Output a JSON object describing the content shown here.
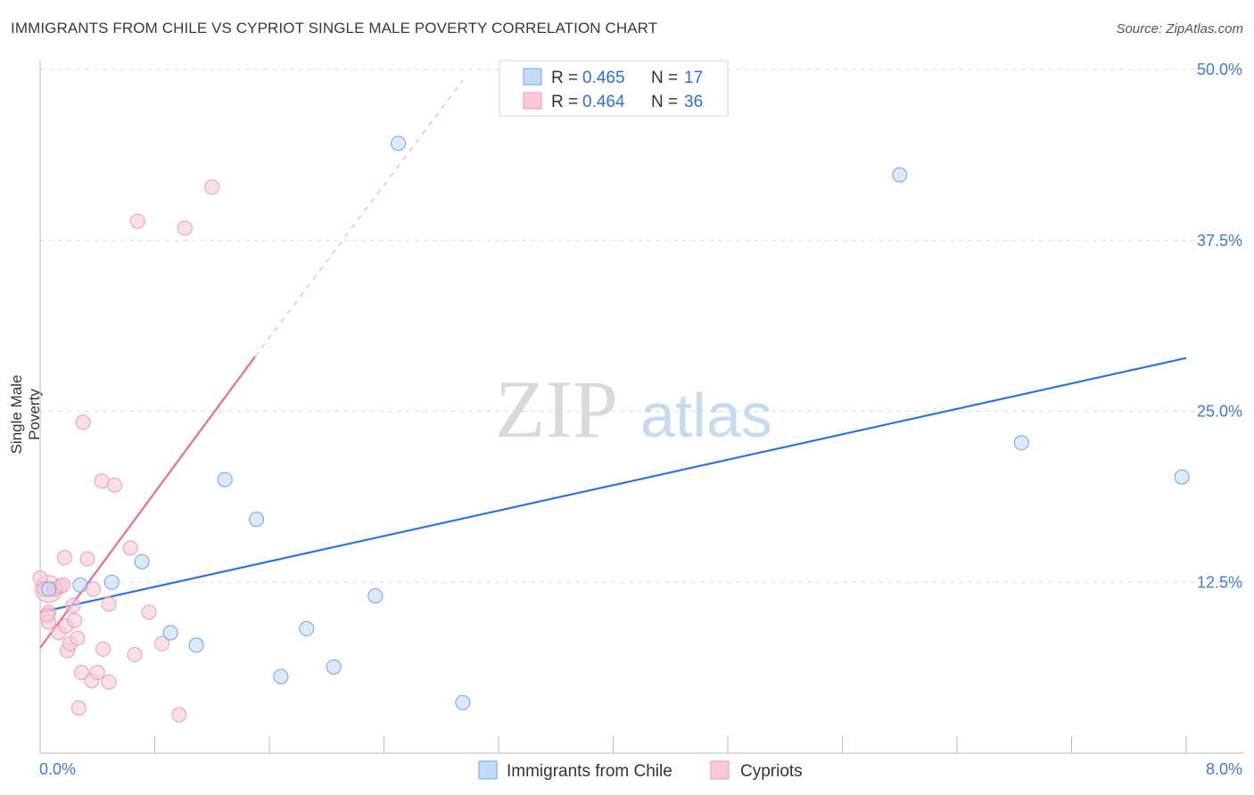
{
  "title": "IMMIGRANTS FROM CHILE VS CYPRIOT SINGLE MALE POVERTY CORRELATION CHART",
  "source": "Source: ZipAtlas.com",
  "watermark": {
    "zip": "ZIP",
    "atlas": "atlas"
  },
  "chart_data": {
    "type": "scatter",
    "xlabel": "",
    "ylabel": "Single Male Poverty",
    "xlim": [
      0,
      8
    ],
    "ylim": [
      0,
      50
    ],
    "x_tick_labels": [
      "0.0%",
      "8.0%"
    ],
    "y_ticks": [
      12.5,
      25.0,
      37.5,
      50.0
    ],
    "y_tick_labels": [
      "12.5%",
      "25.0%",
      "37.5%",
      "50.0%"
    ],
    "grid": true,
    "legend_position": "top-center",
    "series": [
      {
        "name": "Immigrants from Chile",
        "color": "#6fa4e6",
        "fill": "#c5dbf5",
        "line_color": "#2f75d6",
        "R": "0.465",
        "N": "17",
        "points": [
          [
            0.06,
            12.0
          ],
          [
            0.28,
            12.3
          ],
          [
            0.5,
            12.5
          ],
          [
            0.71,
            14.0
          ],
          [
            0.91,
            8.8
          ],
          [
            1.09,
            7.9
          ],
          [
            1.29,
            20.0
          ],
          [
            1.51,
            17.1
          ],
          [
            1.68,
            5.6
          ],
          [
            1.86,
            9.1
          ],
          [
            2.05,
            6.3
          ],
          [
            2.34,
            11.5
          ],
          [
            2.5,
            44.6
          ],
          [
            2.95,
            3.7
          ],
          [
            6.0,
            42.3
          ],
          [
            6.85,
            22.7
          ],
          [
            7.97,
            20.2
          ]
        ],
        "trend": [
          [
            0,
            10.3
          ],
          [
            8,
            28.9
          ]
        ]
      },
      {
        "name": "Cypriots",
        "color": "#ee9ab8",
        "fill": "#f8cad9",
        "line_color": "#e76a97",
        "R": "0.464",
        "N": "36",
        "points": [
          [
            0.0,
            12.8
          ],
          [
            0.03,
            12.0
          ],
          [
            0.06,
            10.3
          ],
          [
            0.06,
            9.6
          ],
          [
            0.1,
            12.0
          ],
          [
            0.14,
            12.2
          ],
          [
            0.13,
            8.8
          ],
          [
            0.16,
            12.3
          ],
          [
            0.17,
            14.3
          ],
          [
            0.18,
            9.3
          ],
          [
            0.19,
            7.5
          ],
          [
            0.21,
            8.0
          ],
          [
            0.23,
            10.8
          ],
          [
            0.24,
            9.7
          ],
          [
            0.26,
            8.4
          ],
          [
            0.27,
            3.3
          ],
          [
            0.29,
            5.9
          ],
          [
            0.3,
            24.2
          ],
          [
            0.33,
            14.2
          ],
          [
            0.36,
            5.3
          ],
          [
            0.37,
            12.0
          ],
          [
            0.4,
            5.9
          ],
          [
            0.43,
            19.9
          ],
          [
            0.44,
            7.6
          ],
          [
            0.48,
            5.2
          ],
          [
            0.48,
            10.9
          ],
          [
            0.52,
            19.6
          ],
          [
            0.63,
            15.0
          ],
          [
            0.66,
            7.2
          ],
          [
            0.68,
            38.9
          ],
          [
            0.76,
            10.3
          ],
          [
            0.85,
            8.0
          ],
          [
            0.97,
            2.8
          ],
          [
            1.01,
            38.4
          ],
          [
            1.2,
            41.4
          ],
          [
            0.05,
            10.1
          ]
        ],
        "trend_solid": [
          [
            0,
            7.7
          ],
          [
            1.5,
            29.0
          ]
        ],
        "trend_dashed": [
          [
            1.5,
            29.0
          ],
          [
            2.95,
            49.2
          ]
        ]
      }
    ]
  }
}
